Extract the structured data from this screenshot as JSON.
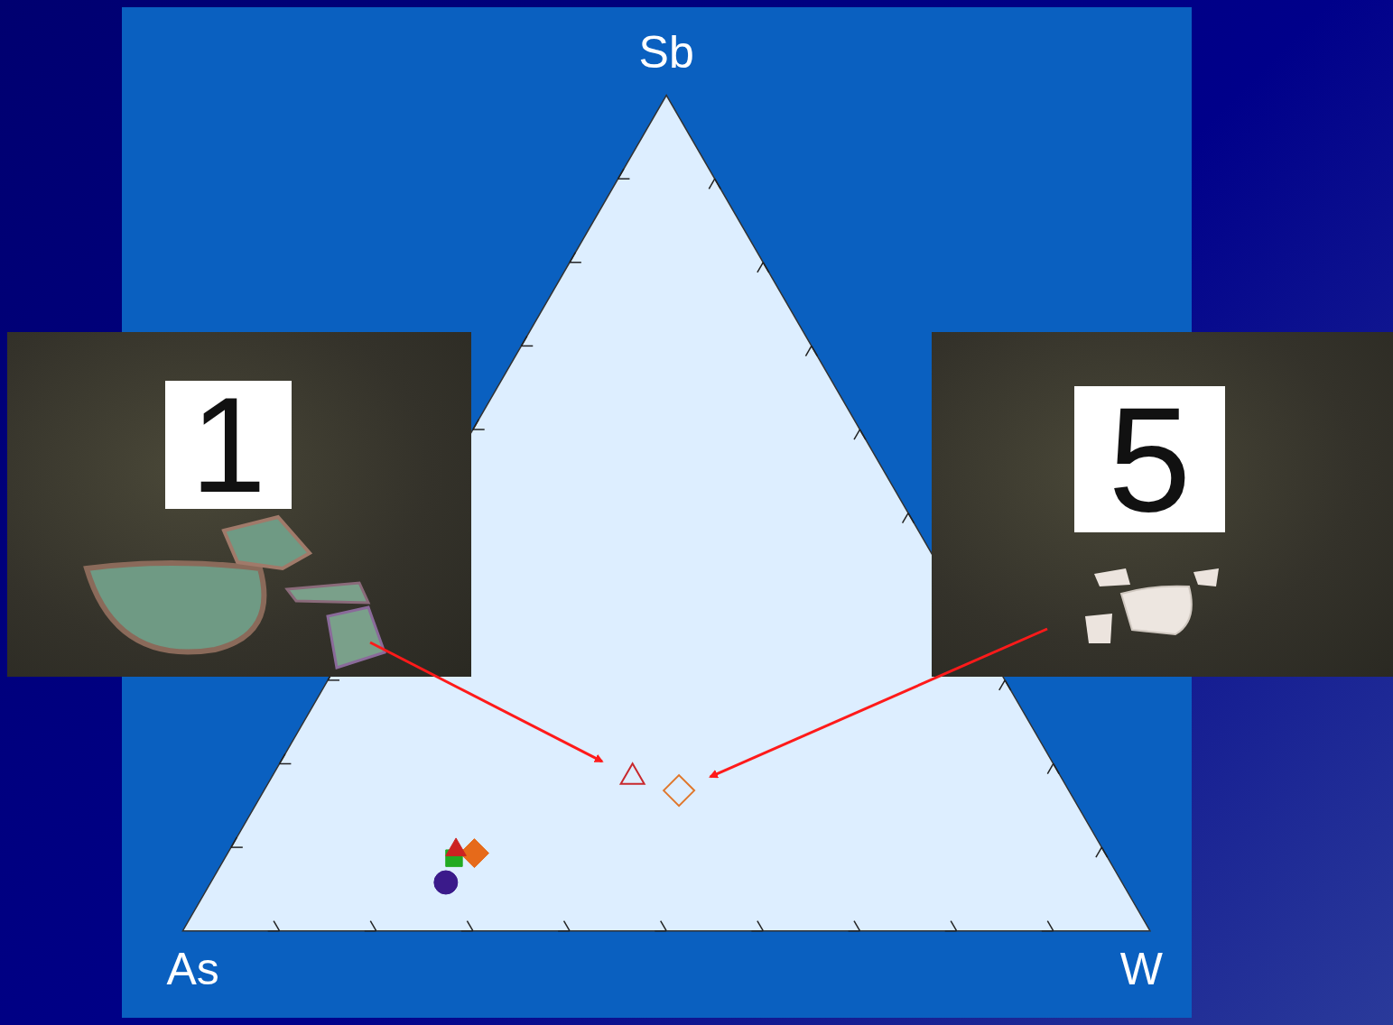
{
  "chart_data": {
    "type": "ternary",
    "corners": {
      "left": "As",
      "top": "Sb",
      "right": "W"
    },
    "range": [
      0,
      100
    ],
    "ticks": [
      10,
      20,
      30,
      40,
      50,
      60,
      70,
      80,
      90
    ],
    "tick_labels": false,
    "grid": false,
    "series": [
      {
        "color": "#c8282d",
        "marker": "triangle-open",
        "values": {
          "As": 44.3,
          "Sb": 18.4,
          "W": 37.3
        }
      },
      {
        "color": "#e0762a",
        "marker": "diamond-open",
        "values": {
          "As": 40.3,
          "Sb": 16.8,
          "W": 42.9
        }
      },
      {
        "color": "#3a1a8a",
        "marker": "circle",
        "values": {
          "As": 69.9,
          "Sb": 5.8,
          "W": 24.3
        }
      },
      {
        "color": "#cc2222",
        "marker": "triangle",
        "values": {
          "As": 66.9,
          "Sb": 9.7,
          "W": 23.4
        }
      },
      {
        "color": "#22aa22",
        "marker": "square",
        "values": {
          "As": 67.6,
          "Sb": 8.7,
          "W": 23.7
        }
      },
      {
        "color": "#e66a1a",
        "marker": "diamond",
        "values": {
          "As": 65.2,
          "Sb": 9.3,
          "W": 25.5
        }
      }
    ],
    "annotations": [
      {
        "text": "1",
        "series": 0
      },
      {
        "text": "5",
        "series": 1
      }
    ]
  }
}
